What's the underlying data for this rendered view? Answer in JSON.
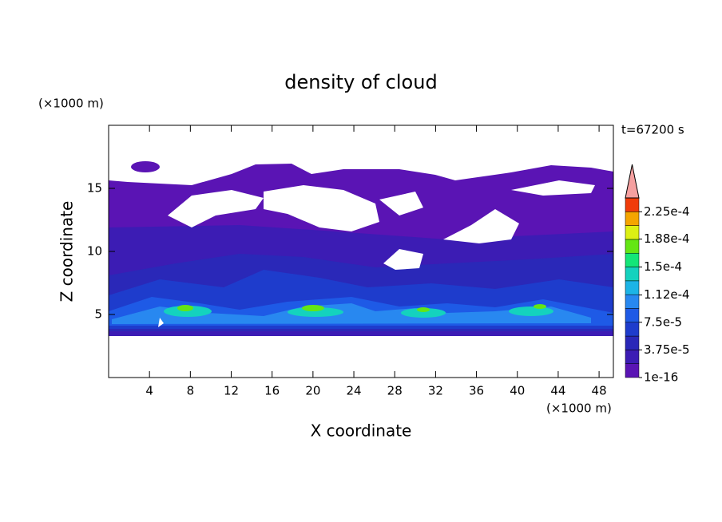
{
  "chart_data": {
    "type": "contour",
    "title": "density of cloud",
    "x_label": "X coordinate",
    "y_label": "Z coordinate",
    "x_unit": "(×1000 m)",
    "y_unit": "(×1000 m)",
    "annotation": "t=67200 s",
    "xlim": [
      0,
      49.4
    ],
    "ylim": [
      0,
      20
    ],
    "xticks": [
      4,
      8,
      12,
      16,
      20,
      24,
      28,
      32,
      36,
      40,
      44,
      48
    ],
    "yticks": [
      5,
      10,
      15
    ],
    "colorbar": {
      "lim": [
        0,
        0.00024375
      ],
      "colors": [
        "#5a14b4",
        "#3c1cb4",
        "#2a28b8",
        "#1e3ccc",
        "#1e5ae6",
        "#2888f0",
        "#1cb4e6",
        "#14d2be",
        "#14e678",
        "#64e614",
        "#dcf014",
        "#f5a500",
        "#f03c0a"
      ],
      "over_color": "#f5a0a0",
      "ticks": [
        {
          "value": 1e-16,
          "label": "1e-16"
        },
        {
          "value": 3.75e-05,
          "label": "3.75e-5"
        },
        {
          "value": 7.5e-05,
          "label": "7.5e-5"
        },
        {
          "value": 0.000112,
          "label": "1.12e-4"
        },
        {
          "value": 0.00015,
          "label": "1.5e-4"
        },
        {
          "value": 0.000188,
          "label": "1.88e-4"
        },
        {
          "value": 0.000225,
          "label": "2.25e-4"
        }
      ]
    }
  }
}
